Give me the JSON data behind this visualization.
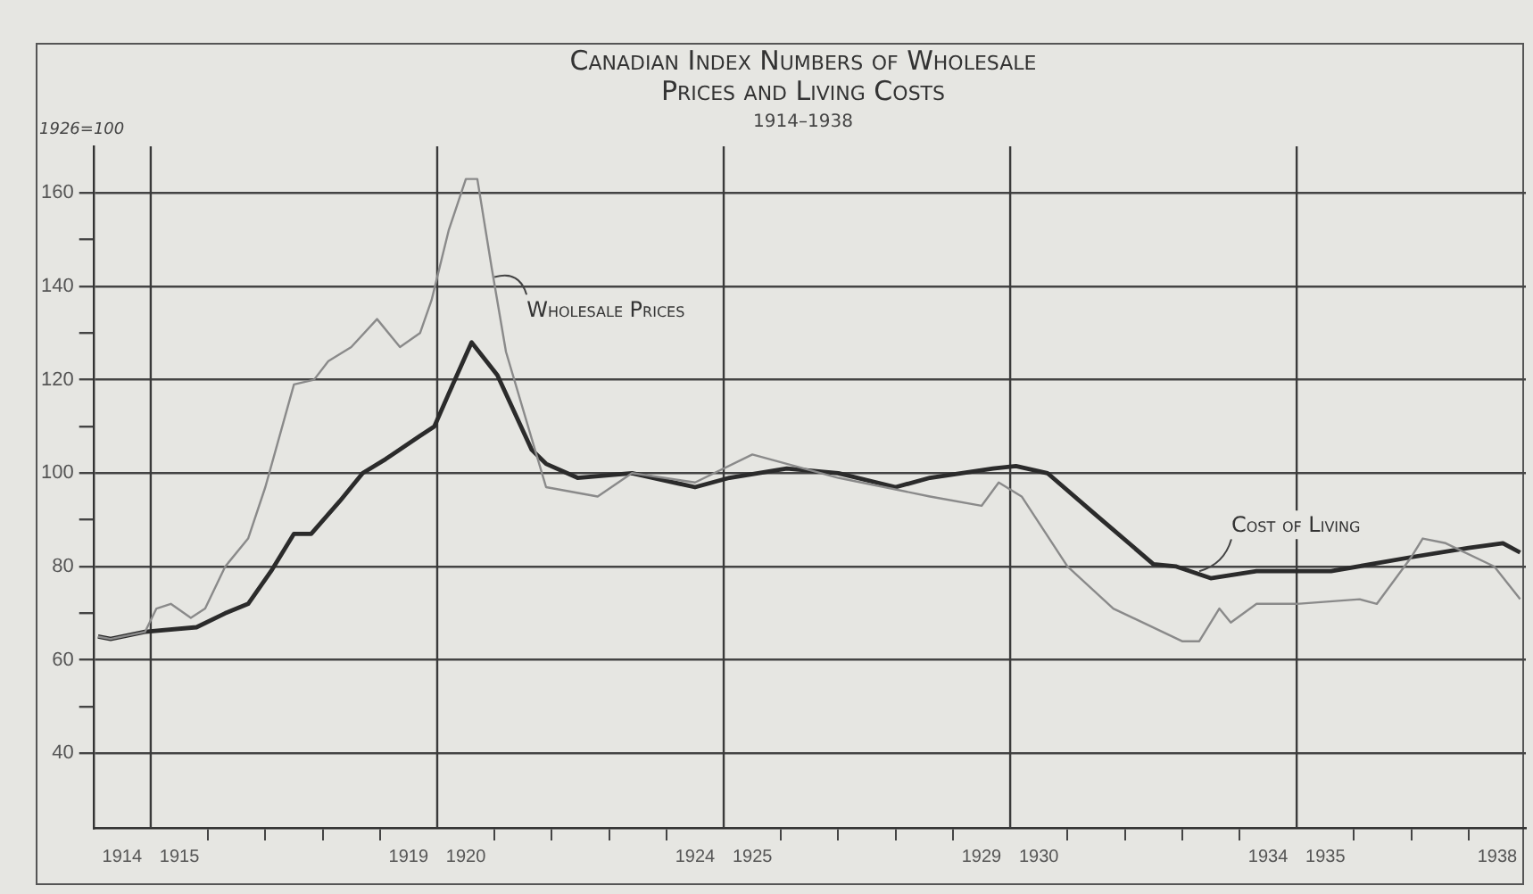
{
  "chart_data": {
    "type": "line",
    "title": "Canadian Index Numbers of Wholesale Prices and Living Costs",
    "subtitle": "1914–1938",
    "ylabel": "1926=100",
    "annotations": [
      {
        "text": "Wholesale Prices",
        "x": 1921.0,
        "y": 142
      },
      {
        "text": "Cost of Living",
        "x": 1933.3,
        "y": 79
      }
    ],
    "series": [
      {
        "color": "#8a8a8a",
        "x": [
          1914.08,
          1914.3,
          1914.9,
          1915.1,
          1915.35,
          1915.7,
          1915.95,
          1916.3,
          1916.7,
          1917.0,
          1917.5,
          1917.85,
          1918.1,
          1918.5,
          1918.95,
          1919.35,
          1919.7,
          1919.9,
          1920.2,
          1920.5,
          1920.7,
          1920.95,
          1921.2,
          1921.9,
          1922.8,
          1923.4,
          1924.5,
          1925.5,
          1927.0,
          1928.6,
          1929.5,
          1929.8,
          1930.2,
          1931.0,
          1931.8,
          1933.0,
          1933.3,
          1933.65,
          1933.85,
          1934.3,
          1935.0,
          1936.1,
          1936.4,
          1937.0,
          1937.2,
          1937.6,
          1938.45,
          1938.9
        ],
        "values": [
          65,
          64.5,
          66,
          71,
          72,
          69,
          71,
          80,
          86,
          97,
          119,
          120,
          124,
          127,
          133,
          127,
          130,
          137,
          152,
          163,
          163,
          144,
          126,
          97,
          95,
          100,
          98,
          104,
          99,
          95,
          93,
          98,
          95,
          80,
          71,
          64,
          64,
          71,
          68,
          72,
          72,
          73,
          72,
          82,
          86,
          85,
          80,
          73
        ]
      },
      {
        "color": "#2b2b2b",
        "x": [
          1914.08,
          1914.3,
          1914.9,
          1915.8,
          1916.3,
          1916.7,
          1917.1,
          1917.5,
          1917.8,
          1918.3,
          1918.7,
          1919.1,
          1919.7,
          1919.95,
          1920.2,
          1920.6,
          1921.05,
          1921.65,
          1921.9,
          1922.45,
          1923.4,
          1924.5,
          1925.1,
          1926.1,
          1927.0,
          1928.0,
          1928.6,
          1929.7,
          1930.1,
          1930.65,
          1931.5,
          1932.5,
          1932.9,
          1933.5,
          1934.3,
          1935.6,
          1937.0,
          1938.0,
          1938.6,
          1938.9
        ],
        "values": [
          65,
          64.5,
          66,
          67,
          70,
          72,
          79,
          87,
          87,
          94,
          100,
          103,
          108,
          110,
          117,
          128,
          121,
          105,
          102,
          99,
          100,
          97,
          99,
          101,
          100,
          97,
          99,
          101,
          101.5,
          100,
          91,
          80.5,
          80,
          77.5,
          79,
          79,
          82,
          84,
          85,
          83
        ]
      }
    ],
    "xlim": [
      1914,
      1939
    ],
    "xticks": [
      {
        "value": 1914.5,
        "label": "1914"
      },
      {
        "value": 1915.5,
        "label": "1915"
      },
      {
        "value": 1919.5,
        "label": "1919"
      },
      {
        "value": 1920.5,
        "label": "1920"
      },
      {
        "value": 1924.5,
        "label": "1924"
      },
      {
        "value": 1925.5,
        "label": "1925"
      },
      {
        "value": 1929.5,
        "label": "1929"
      },
      {
        "value": 1930.5,
        "label": "1930"
      },
      {
        "value": 1934.5,
        "label": "1934"
      },
      {
        "value": 1935.5,
        "label": "1935"
      },
      {
        "value": 1938.5,
        "label": "1938"
      },
      {
        "value": 1916,
        "label": null
      },
      {
        "value": 1917,
        "label": null
      },
      {
        "value": 1918,
        "label": null
      },
      {
        "value": 1919,
        "label": null
      },
      {
        "value": 1921,
        "label": null
      },
      {
        "value": 1922,
        "label": null
      },
      {
        "value": 1923,
        "label": null
      },
      {
        "value": 1924,
        "label": null
      },
      {
        "value": 1926,
        "label": null
      },
      {
        "value": 1927,
        "label": null
      },
      {
        "value": 1928,
        "label": null
      },
      {
        "value": 1929,
        "label": null
      },
      {
        "value": 1931,
        "label": null
      },
      {
        "value": 1932,
        "label": null
      },
      {
        "value": 1933,
        "label": null
      },
      {
        "value": 1934,
        "label": null
      },
      {
        "value": 1936,
        "label": null
      },
      {
        "value": 1937,
        "label": null
      },
      {
        "value": 1938,
        "label": null
      }
    ],
    "ylim": [
      24,
      170
    ],
    "yticks": [
      40,
      {
        "value": 50,
        "label": null
      },
      60,
      {
        "value": 70,
        "label": null
      },
      80,
      {
        "value": 90,
        "label": null
      },
      100,
      {
        "value": 110,
        "label": null
      },
      120,
      {
        "value": 130,
        "label": null
      },
      140,
      {
        "value": 150,
        "label": null
      },
      160
    ],
    "ref_lines": [
      {
        "axis": "x",
        "value": 1915,
        "color": "#3a3a3a"
      },
      {
        "axis": "x",
        "value": 1920,
        "color": "#3a3a3a"
      },
      {
        "axis": "x",
        "value": 1925,
        "color": "#3a3a3a"
      },
      {
        "axis": "x",
        "value": 1930,
        "color": "#3a3a3a"
      },
      {
        "axis": "x",
        "value": 1935,
        "color": "#3a3a3a"
      }
    ],
    "grid": "y",
    "legend": false,
    "marker": "none",
    "line_style": "solid"
  }
}
